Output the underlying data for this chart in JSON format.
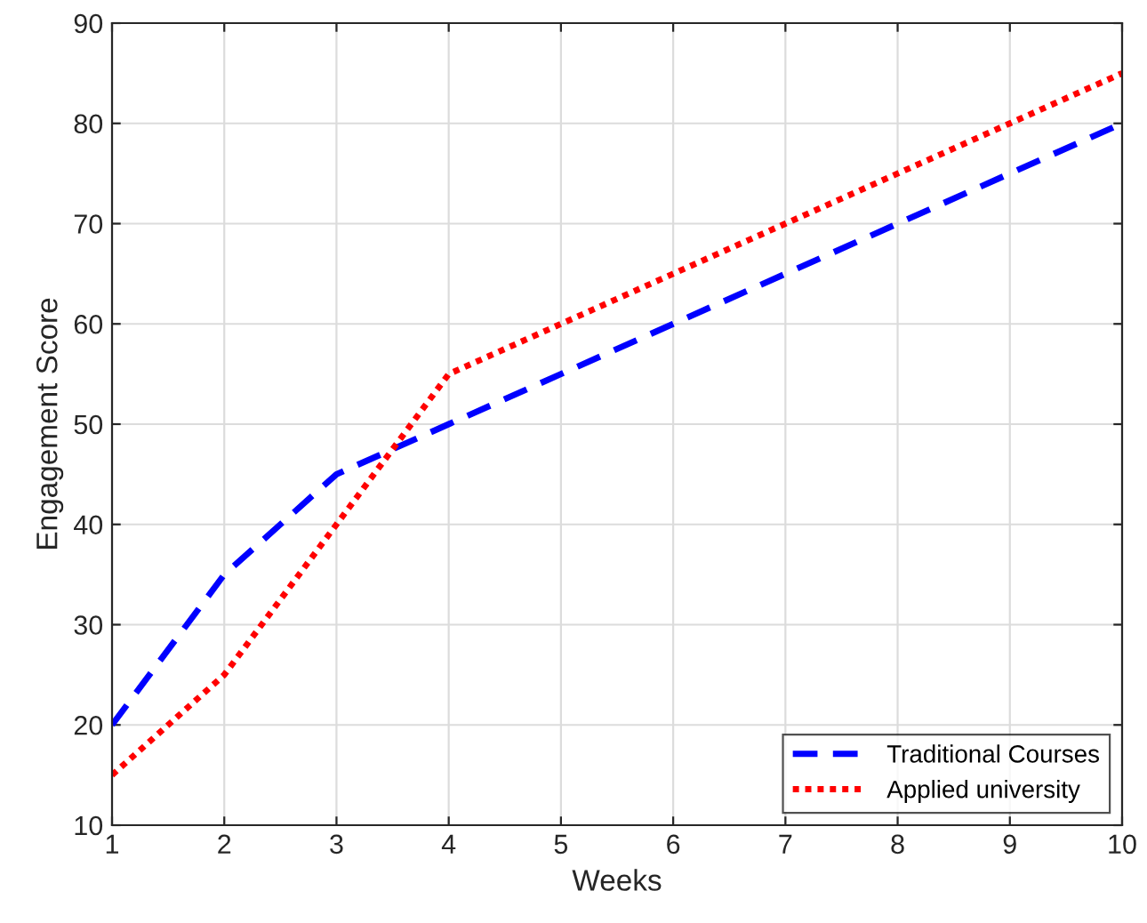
{
  "chart_data": {
    "type": "line",
    "xlabel": "Weeks",
    "ylabel": "Engagement Score",
    "x": [
      1,
      2,
      3,
      4,
      5,
      6,
      7,
      8,
      9,
      10
    ],
    "series": [
      {
        "name": "Traditional Courses",
        "color": "#0000ff",
        "line_style": "dashed",
        "values": [
          20,
          35,
          45,
          50,
          55,
          60,
          65,
          70,
          75,
          80
        ]
      },
      {
        "name": "Applied university",
        "color": "#ff0000",
        "line_style": "dotted",
        "values": [
          15,
          25,
          40,
          55,
          60,
          65,
          70,
          75,
          80,
          85
        ]
      }
    ],
    "xlim": [
      1,
      10
    ],
    "xticks": [
      1,
      2,
      3,
      4,
      5,
      6,
      7,
      8,
      9,
      10
    ],
    "ylim": [
      10,
      90
    ],
    "yticks": [
      10,
      20,
      30,
      40,
      50,
      60,
      70,
      80,
      90
    ],
    "grid": true,
    "legend": "bottom right",
    "marker": "none"
  }
}
